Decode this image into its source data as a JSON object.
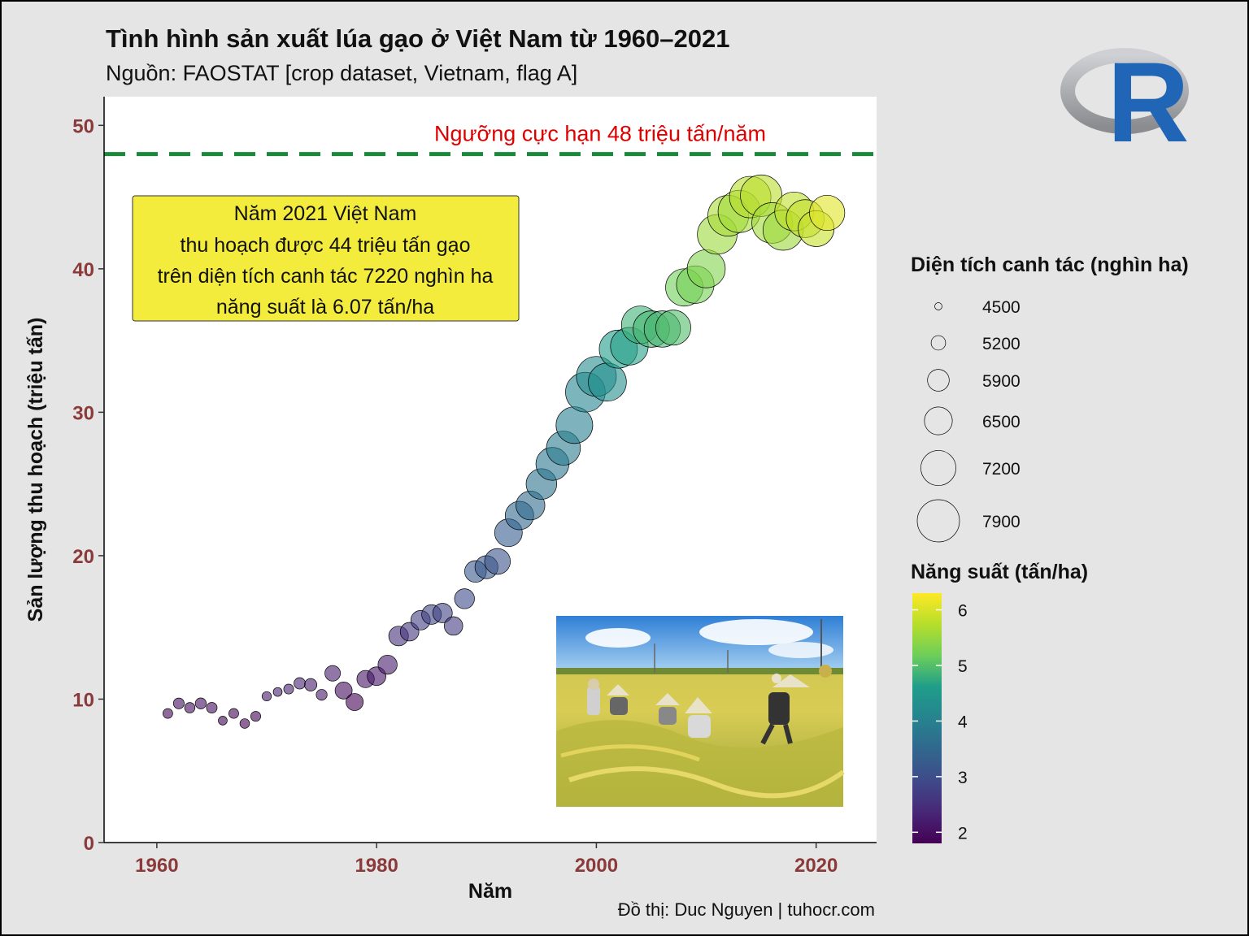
{
  "title": "Tình hình sản xuất lúa gạo ở Việt Nam từ 1960–2021",
  "subtitle": "Nguồn: FAOSTAT [crop dataset, Vietnam, flag A]",
  "caption": "Đồ thị: Duc Nguyen | tuhocr.com",
  "logo": {
    "name": "r-logo",
    "letter": "R",
    "ring_color": "#a8a9ad",
    "letter_color": "#2165b6"
  },
  "photo": {
    "name": "rice-harvest-photo"
  },
  "chart_data": {
    "type": "scatter",
    "xlabel": "Năm",
    "ylabel": "Sản lượng thu hoạch (triệu tấn)",
    "xlim": [
      1955.2,
      2025.5
    ],
    "ylim": [
      0,
      52
    ],
    "x_ticks": [
      1960,
      1980,
      2000,
      2020
    ],
    "y_ticks": [
      0,
      10,
      20,
      30,
      40,
      50
    ],
    "threshold": {
      "value": 48,
      "label": "Ngưỡng cực hạn 48 triệu tấn/năm",
      "color": "#1a8a3a"
    },
    "annotation": {
      "lines": [
        "Năm 2021 Việt Nam",
        "thu hoạch được 44 triệu tấn gạo",
        "trên diện tích canh tác 7220 nghìn ha",
        "năng suất là 6.07 tấn/ha"
      ],
      "fill": "#f3ec3c"
    },
    "size_legend": {
      "title": "Diện tích canh tác (nghìn ha)",
      "breaks": [
        4500,
        5200,
        5900,
        6500,
        7200,
        7900
      ]
    },
    "color_legend": {
      "title": "Năng suất (tấn/ha)",
      "ticks": [
        2,
        3,
        4,
        5,
        6
      ],
      "range": [
        1.8,
        6.3
      ],
      "palette": [
        "#440154",
        "#482777",
        "#3f4a8a",
        "#31678e",
        "#26838f",
        "#1f9d8a",
        "#6cce5a",
        "#b6de2b",
        "#fee825"
      ]
    },
    "points": [
      {
        "year": 1961,
        "production": 9.0,
        "area": 4740,
        "yield": 1.9
      },
      {
        "year": 1962,
        "production": 9.7,
        "area": 4840,
        "yield": 2.0
      },
      {
        "year": 1963,
        "production": 9.4,
        "area": 4800,
        "yield": 1.95
      },
      {
        "year": 1964,
        "production": 9.7,
        "area": 4860,
        "yield": 2.0
      },
      {
        "year": 1965,
        "production": 9.4,
        "area": 4830,
        "yield": 1.95
      },
      {
        "year": 1966,
        "production": 8.5,
        "area": 4650,
        "yield": 1.85
      },
      {
        "year": 1967,
        "production": 9.0,
        "area": 4750,
        "yield": 1.9
      },
      {
        "year": 1968,
        "production": 8.3,
        "area": 4720,
        "yield": 1.8
      },
      {
        "year": 1969,
        "production": 8.8,
        "area": 4760,
        "yield": 1.85
      },
      {
        "year": 1970,
        "production": 10.2,
        "area": 4700,
        "yield": 2.15
      },
      {
        "year": 1971,
        "production": 10.5,
        "area": 4650,
        "yield": 2.25
      },
      {
        "year": 1972,
        "production": 10.7,
        "area": 4750,
        "yield": 2.25
      },
      {
        "year": 1973,
        "production": 11.1,
        "area": 4900,
        "yield": 2.3
      },
      {
        "year": 1974,
        "production": 11.0,
        "area": 5000,
        "yield": 2.2
      },
      {
        "year": 1975,
        "production": 10.3,
        "area": 4850,
        "yield": 2.15
      },
      {
        "year": 1976,
        "production": 11.8,
        "area": 5300,
        "yield": 2.2
      },
      {
        "year": 1977,
        "production": 10.6,
        "area": 5450,
        "yield": 1.95
      },
      {
        "year": 1978,
        "production": 9.8,
        "area": 5460,
        "yield": 1.8
      },
      {
        "year": 1979,
        "production": 11.4,
        "area": 5480,
        "yield": 2.1
      },
      {
        "year": 1980,
        "production": 11.6,
        "area": 5600,
        "yield": 2.1
      },
      {
        "year": 1981,
        "production": 12.4,
        "area": 5650,
        "yield": 2.2
      },
      {
        "year": 1982,
        "production": 14.4,
        "area": 5700,
        "yield": 2.5
      },
      {
        "year": 1983,
        "production": 14.7,
        "area": 5600,
        "yield": 2.6
      },
      {
        "year": 1984,
        "production": 15.5,
        "area": 5680,
        "yield": 2.75
      },
      {
        "year": 1985,
        "production": 15.9,
        "area": 5700,
        "yield": 2.8
      },
      {
        "year": 1986,
        "production": 16.0,
        "area": 5690,
        "yield": 2.8
      },
      {
        "year": 1987,
        "production": 15.1,
        "area": 5590,
        "yield": 2.7
      },
      {
        "year": 1988,
        "production": 17.0,
        "area": 5730,
        "yield": 2.95
      },
      {
        "year": 1989,
        "production": 18.9,
        "area": 5900,
        "yield": 3.2
      },
      {
        "year": 1990,
        "production": 19.2,
        "area": 6030,
        "yield": 3.2
      },
      {
        "year": 1991,
        "production": 19.6,
        "area": 6300,
        "yield": 3.1
      },
      {
        "year": 1992,
        "production": 21.6,
        "area": 6480,
        "yield": 3.3
      },
      {
        "year": 1993,
        "production": 22.8,
        "area": 6560,
        "yield": 3.5
      },
      {
        "year": 1994,
        "production": 23.5,
        "area": 6600,
        "yield": 3.55
      },
      {
        "year": 1995,
        "production": 25.0,
        "area": 6770,
        "yield": 3.7
      },
      {
        "year": 1996,
        "production": 26.4,
        "area": 7000,
        "yield": 3.8
      },
      {
        "year": 1997,
        "production": 27.5,
        "area": 7100,
        "yield": 3.9
      },
      {
        "year": 1998,
        "production": 29.1,
        "area": 7360,
        "yield": 3.95
      },
      {
        "year": 1999,
        "production": 31.4,
        "area": 7650,
        "yield": 4.1
      },
      {
        "year": 2000,
        "production": 32.5,
        "area": 7670,
        "yield": 4.25
      },
      {
        "year": 2001,
        "production": 32.1,
        "area": 7490,
        "yield": 4.3
      },
      {
        "year": 2002,
        "production": 34.4,
        "area": 7500,
        "yield": 4.6
      },
      {
        "year": 2003,
        "production": 34.6,
        "area": 7450,
        "yield": 4.65
      },
      {
        "year": 2004,
        "production": 36.1,
        "area": 7450,
        "yield": 4.85
      },
      {
        "year": 2005,
        "production": 35.8,
        "area": 7330,
        "yield": 4.9
      },
      {
        "year": 2006,
        "production": 35.8,
        "area": 7320,
        "yield": 4.9
      },
      {
        "year": 2007,
        "production": 35.9,
        "area": 7200,
        "yield": 4.98
      },
      {
        "year": 2008,
        "production": 38.7,
        "area": 7420,
        "yield": 5.2
      },
      {
        "year": 2009,
        "production": 38.9,
        "area": 7440,
        "yield": 5.23
      },
      {
        "year": 2010,
        "production": 40.0,
        "area": 7490,
        "yield": 5.34
      },
      {
        "year": 2011,
        "production": 42.4,
        "area": 7650,
        "yield": 5.53
      },
      {
        "year": 2012,
        "production": 43.7,
        "area": 7760,
        "yield": 5.63
      },
      {
        "year": 2013,
        "production": 44.0,
        "area": 7900,
        "yield": 5.58
      },
      {
        "year": 2014,
        "production": 45.0,
        "area": 7820,
        "yield": 5.75
      },
      {
        "year": 2015,
        "production": 45.1,
        "area": 7830,
        "yield": 5.76
      },
      {
        "year": 2016,
        "production": 43.2,
        "area": 7740,
        "yield": 5.58
      },
      {
        "year": 2017,
        "production": 42.7,
        "area": 7710,
        "yield": 5.55
      },
      {
        "year": 2018,
        "production": 44.0,
        "area": 7570,
        "yield": 5.81
      },
      {
        "year": 2019,
        "production": 43.5,
        "area": 7470,
        "yield": 5.82
      },
      {
        "year": 2020,
        "production": 42.8,
        "area": 7280,
        "yield": 5.88
      },
      {
        "year": 2021,
        "production": 43.9,
        "area": 7220,
        "yield": 6.07
      }
    ]
  }
}
